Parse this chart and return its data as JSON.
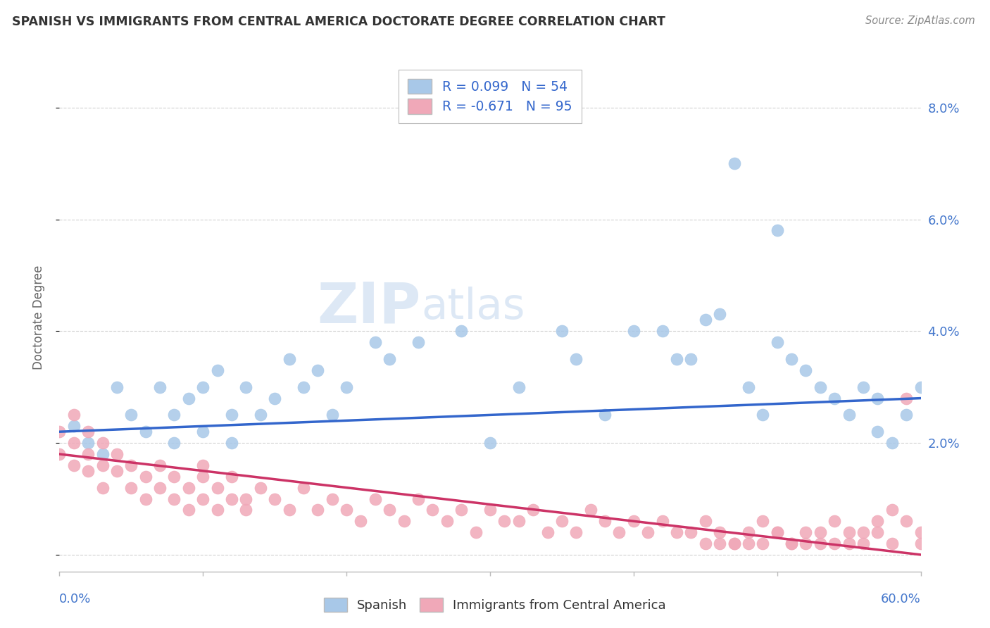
{
  "title": "SPANISH VS IMMIGRANTS FROM CENTRAL AMERICA DOCTORATE DEGREE CORRELATION CHART",
  "source": "Source: ZipAtlas.com",
  "ylabel": "Doctorate Degree",
  "blue_R": 0.099,
  "blue_N": 54,
  "pink_R": -0.671,
  "pink_N": 95,
  "blue_color": "#a8c8e8",
  "pink_color": "#f0a8b8",
  "blue_line_color": "#3366cc",
  "pink_line_color": "#cc3366",
  "background_color": "#ffffff",
  "grid_color": "#cccccc",
  "title_color": "#333333",
  "axis_label_color": "#4477cc",
  "legend_text_color": "#3366cc",
  "xlim": [
    0.0,
    0.6
  ],
  "ylim": [
    -0.003,
    0.088
  ],
  "yticks": [
    0.0,
    0.02,
    0.04,
    0.06,
    0.08
  ],
  "blue_x": [
    0.01,
    0.02,
    0.03,
    0.04,
    0.05,
    0.06,
    0.07,
    0.08,
    0.08,
    0.09,
    0.1,
    0.1,
    0.11,
    0.12,
    0.12,
    0.13,
    0.14,
    0.15,
    0.16,
    0.17,
    0.18,
    0.19,
    0.2,
    0.22,
    0.23,
    0.25,
    0.28,
    0.3,
    0.32,
    0.35,
    0.36,
    0.38,
    0.4,
    0.42,
    0.43,
    0.44,
    0.45,
    0.46,
    0.47,
    0.48,
    0.49,
    0.5,
    0.5,
    0.51,
    0.52,
    0.53,
    0.54,
    0.55,
    0.56,
    0.57,
    0.57,
    0.58,
    0.59,
    0.6
  ],
  "blue_y": [
    0.023,
    0.02,
    0.018,
    0.03,
    0.025,
    0.022,
    0.03,
    0.025,
    0.02,
    0.028,
    0.03,
    0.022,
    0.033,
    0.025,
    0.02,
    0.03,
    0.025,
    0.028,
    0.035,
    0.03,
    0.033,
    0.025,
    0.03,
    0.038,
    0.035,
    0.038,
    0.04,
    0.02,
    0.03,
    0.04,
    0.035,
    0.025,
    0.04,
    0.04,
    0.035,
    0.035,
    0.042,
    0.043,
    0.07,
    0.03,
    0.025,
    0.058,
    0.038,
    0.035,
    0.033,
    0.03,
    0.028,
    0.025,
    0.03,
    0.028,
    0.022,
    0.02,
    0.025,
    0.03
  ],
  "pink_x": [
    0.0,
    0.0,
    0.01,
    0.01,
    0.01,
    0.02,
    0.02,
    0.02,
    0.03,
    0.03,
    0.03,
    0.04,
    0.04,
    0.05,
    0.05,
    0.06,
    0.06,
    0.07,
    0.07,
    0.08,
    0.08,
    0.09,
    0.09,
    0.1,
    0.1,
    0.1,
    0.11,
    0.11,
    0.12,
    0.12,
    0.13,
    0.13,
    0.14,
    0.15,
    0.16,
    0.17,
    0.18,
    0.19,
    0.2,
    0.21,
    0.22,
    0.23,
    0.24,
    0.25,
    0.26,
    0.27,
    0.28,
    0.29,
    0.3,
    0.31,
    0.32,
    0.33,
    0.34,
    0.35,
    0.36,
    0.37,
    0.38,
    0.39,
    0.4,
    0.41,
    0.42,
    0.43,
    0.44,
    0.45,
    0.46,
    0.47,
    0.48,
    0.49,
    0.5,
    0.51,
    0.52,
    0.53,
    0.54,
    0.55,
    0.56,
    0.57,
    0.58,
    0.59,
    0.6,
    0.6,
    0.59,
    0.58,
    0.57,
    0.56,
    0.55,
    0.54,
    0.53,
    0.52,
    0.51,
    0.5,
    0.49,
    0.48,
    0.47,
    0.46,
    0.45
  ],
  "pink_y": [
    0.022,
    0.018,
    0.02,
    0.016,
    0.025,
    0.018,
    0.015,
    0.022,
    0.016,
    0.012,
    0.02,
    0.015,
    0.018,
    0.012,
    0.016,
    0.014,
    0.01,
    0.012,
    0.016,
    0.01,
    0.014,
    0.012,
    0.008,
    0.014,
    0.01,
    0.016,
    0.012,
    0.008,
    0.01,
    0.014,
    0.01,
    0.008,
    0.012,
    0.01,
    0.008,
    0.012,
    0.008,
    0.01,
    0.008,
    0.006,
    0.01,
    0.008,
    0.006,
    0.01,
    0.008,
    0.006,
    0.008,
    0.004,
    0.008,
    0.006,
    0.006,
    0.008,
    0.004,
    0.006,
    0.004,
    0.008,
    0.006,
    0.004,
    0.006,
    0.004,
    0.006,
    0.004,
    0.004,
    0.006,
    0.004,
    0.002,
    0.004,
    0.006,
    0.004,
    0.002,
    0.004,
    0.002,
    0.006,
    0.004,
    0.002,
    0.004,
    0.002,
    0.006,
    0.002,
    0.004,
    0.028,
    0.008,
    0.006,
    0.004,
    0.002,
    0.002,
    0.004,
    0.002,
    0.002,
    0.004,
    0.002,
    0.002,
    0.002,
    0.002,
    0.002
  ]
}
